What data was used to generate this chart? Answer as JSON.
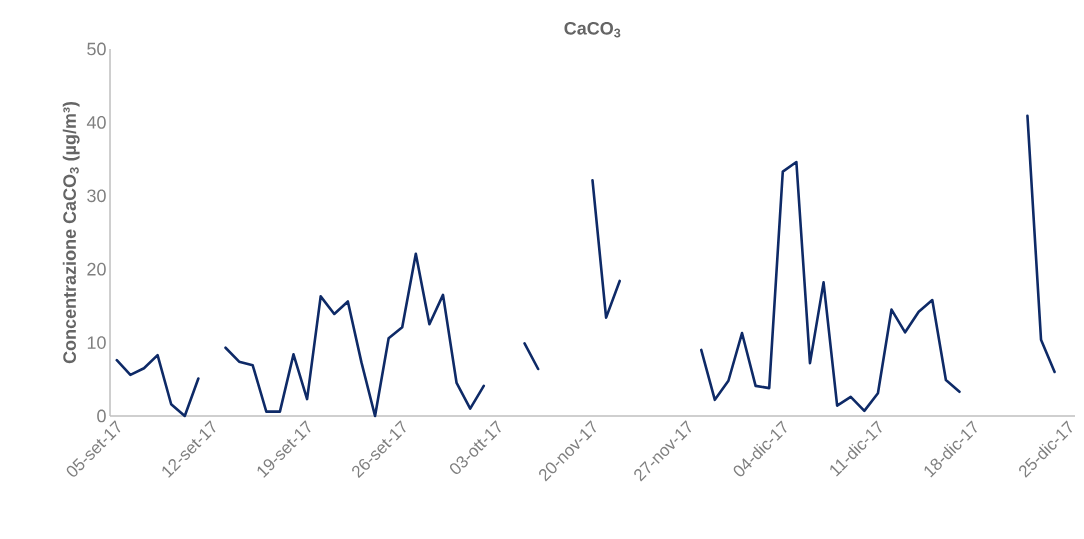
{
  "chart_data": {
    "type": "line",
    "title": "CaCO$_{3}$",
    "ylabel": "Concentrazione CaCO$_{3}$ (µg/m³)",
    "categories": [
      "05-set-17",
      null,
      null,
      null,
      null,
      null,
      null,
      "12-set-17",
      null,
      null,
      null,
      null,
      null,
      null,
      "19-set-17",
      null,
      null,
      null,
      null,
      null,
      null,
      "26-set-17",
      null,
      null,
      null,
      null,
      null,
      null,
      "03-ott-17",
      null,
      null,
      null,
      null,
      null,
      null,
      "20-nov-17",
      null,
      null,
      null,
      null,
      null,
      null,
      "27-nov-17",
      null,
      null,
      null,
      null,
      null,
      null,
      "04-dic-17",
      null,
      null,
      null,
      null,
      null,
      null,
      "11-dic-17",
      null,
      null,
      null,
      null,
      null,
      null,
      "18-dic-17",
      null,
      null,
      null,
      null,
      null,
      null,
      "25-dic-17"
    ],
    "values": [
      7.6,
      5.6,
      6.5,
      8.3,
      1.6,
      0,
      5.1,
      null,
      9.3,
      7.4,
      6.9,
      0.6,
      0.6,
      8.4,
      2.3,
      16.3,
      13.9,
      15.6,
      7.3,
      0,
      10.6,
      12.1,
      22.1,
      12.5,
      16.5,
      4.5,
      1.0,
      4.1,
      null,
      null,
      9.9,
      6.4,
      null,
      null,
      null,
      32.1,
      13.4,
      18.4,
      null,
      null,
      null,
      null,
      null,
      9.0,
      2.2,
      4.8,
      11.3,
      4.1,
      3.8,
      33.3,
      34.6,
      7.2,
      18.2,
      1.4,
      2.6,
      0.7,
      3.1,
      14.5,
      11.4,
      14.2,
      15.8,
      4.9,
      3.3,
      null,
      null,
      null,
      null,
      40.9,
      10.4,
      6.0,
      null
    ],
    "color": "#0e2a67",
    "ylim": [
      0,
      50
    ],
    "yticks": [
      0,
      10,
      20,
      30,
      40,
      50
    ]
  }
}
